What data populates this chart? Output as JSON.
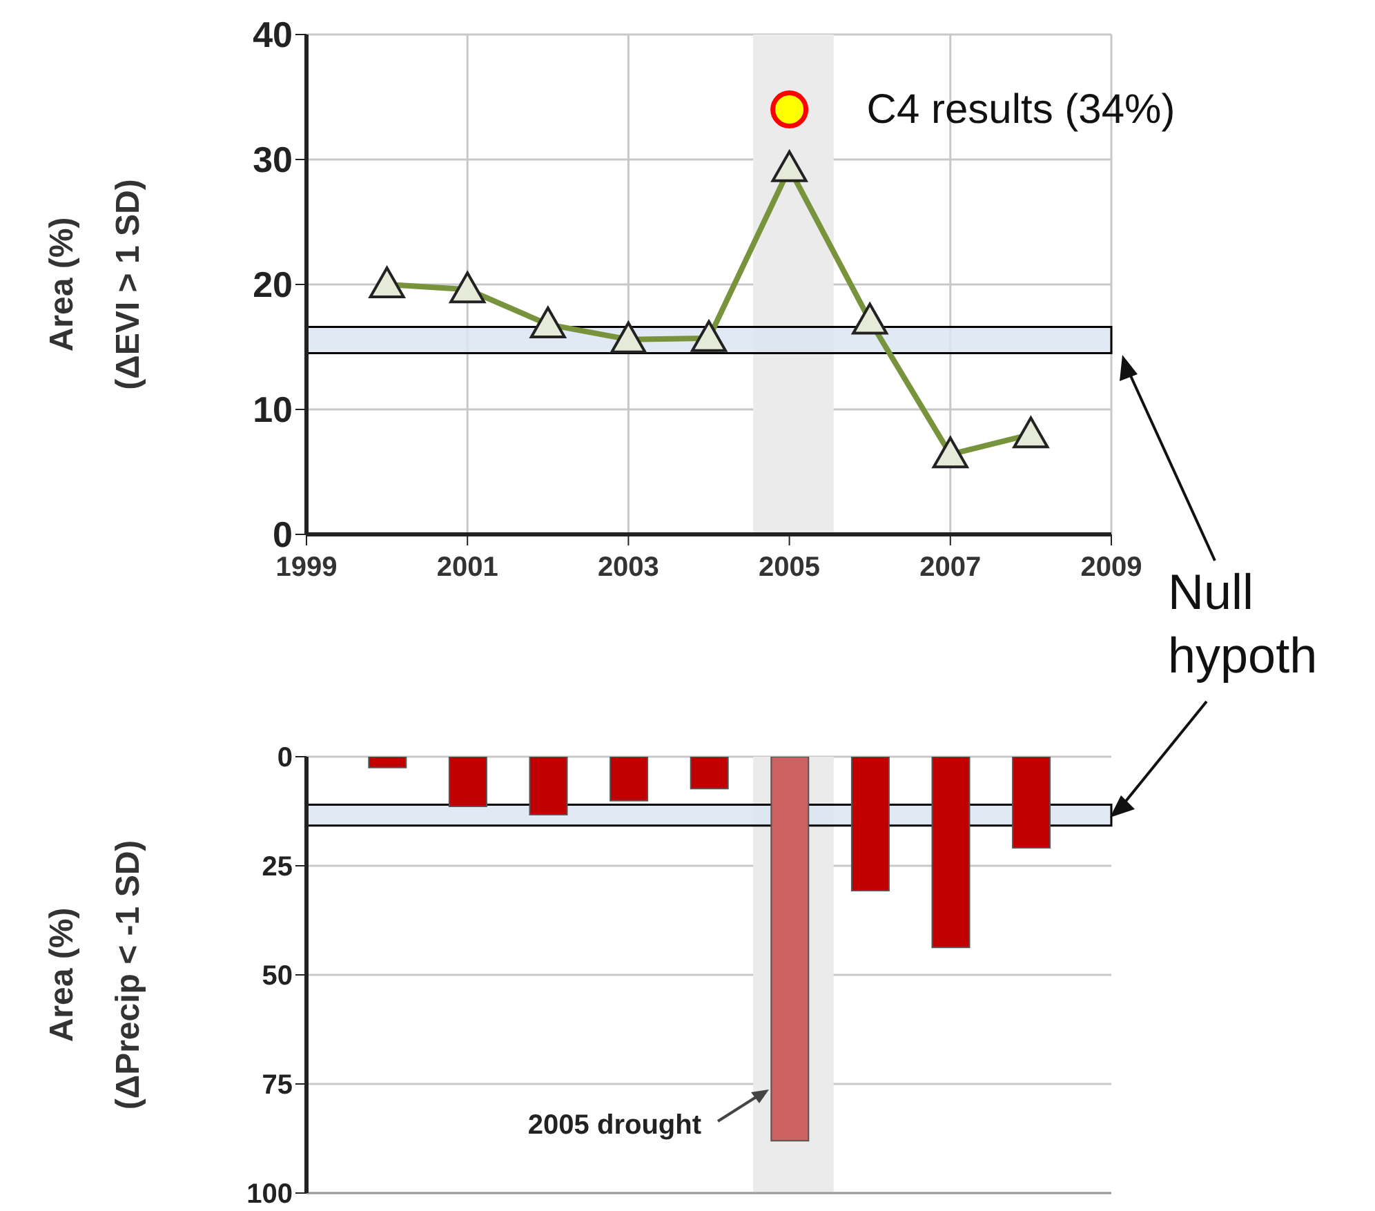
{
  "chart_data": [
    {
      "type": "line",
      "ylabel": "Area  (%)\n(ΔEVI  > 1 SD)",
      "xlim": [
        1999,
        2009
      ],
      "xticks": [
        1999,
        2001,
        2003,
        2005,
        2007,
        2009
      ],
      "ylim": [
        0,
        40
      ],
      "yticks": [
        0,
        10,
        20,
        30,
        40
      ],
      "grid": true,
      "marker": "triangle",
      "series": [
        {
          "color": "#77933c",
          "x": [
            2000,
            2001,
            2002,
            2003,
            2004,
            2005,
            2006,
            2007,
            2008
          ],
          "values": [
            20,
            19.6,
            16.8,
            15.6,
            15.7,
            29.3,
            17.1,
            6.4,
            8
          ]
        },
        {
          "type": "scatter",
          "name": "C4 results (34%)",
          "color": "#ffff00",
          "marker": "circle",
          "x": [
            2005
          ],
          "values": [
            34
          ]
        }
      ],
      "bands": [
        {
          "axis": "x",
          "from": 2004.55,
          "to": 2005.55,
          "color": "#ebebeb"
        },
        {
          "axis": "y",
          "from": 14.5,
          "to": 16.6,
          "color": "#dce6f2"
        }
      ],
      "annotations": [
        "Null hypoth"
      ]
    },
    {
      "type": "bar",
      "ylabel": "Area  (%)\n(ΔPrecip < -1 SD)",
      "x": [
        2000,
        2001,
        2002,
        2003,
        2004,
        2005,
        2006,
        2007,
        2008
      ],
      "values": [
        2.5,
        11.4,
        13.3,
        10.1,
        7.3,
        88,
        30.7,
        43.7,
        20.9
      ],
      "colors": [
        "#c00000",
        "#c00000",
        "#c00000",
        "#c00000",
        "#c00000",
        "#cd6060",
        "#c00000",
        "#c00000",
        "#c00000"
      ],
      "xlim": [
        1999,
        2009
      ],
      "ylim": [
        100,
        0
      ],
      "yticks": [
        0,
        25,
        50,
        75,
        100
      ],
      "grid": "y",
      "tick_labels": "y",
      "bands": [
        {
          "axis": "x",
          "from": 2004.55,
          "to": 2005.55,
          "color": "#ebebeb"
        },
        {
          "axis": "y",
          "from": 11,
          "to": 15.8,
          "color": "#dce6f2"
        }
      ],
      "annotations": [
        "2005 drought"
      ]
    }
  ]
}
